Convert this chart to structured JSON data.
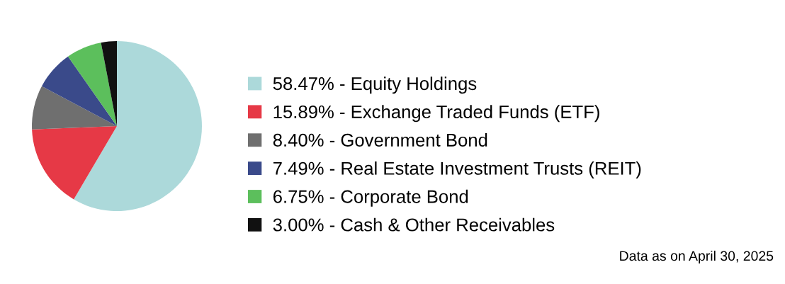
{
  "chart_data": {
    "type": "pie",
    "categories": [
      "Equity Holdings",
      "Exchange Traded Funds (ETF)",
      "Government Bond",
      "Real Estate Investment Trusts (REIT)",
      "Corporate Bond",
      "Cash & Other Receivables"
    ],
    "values": [
      58.47,
      15.89,
      8.4,
      7.49,
      6.75,
      3.0
    ],
    "value_labels": [
      "58.47%",
      "15.89%",
      "8.40%",
      "7.49%",
      "6.75%",
      "3.00%"
    ],
    "colors": [
      "#acd9da",
      "#e63946",
      "#6f6f6f",
      "#3a4a8a",
      "#5cbf5c",
      "#111111"
    ],
    "legend": "right",
    "annotations": [
      "Data as on April 30, 2025"
    ]
  }
}
